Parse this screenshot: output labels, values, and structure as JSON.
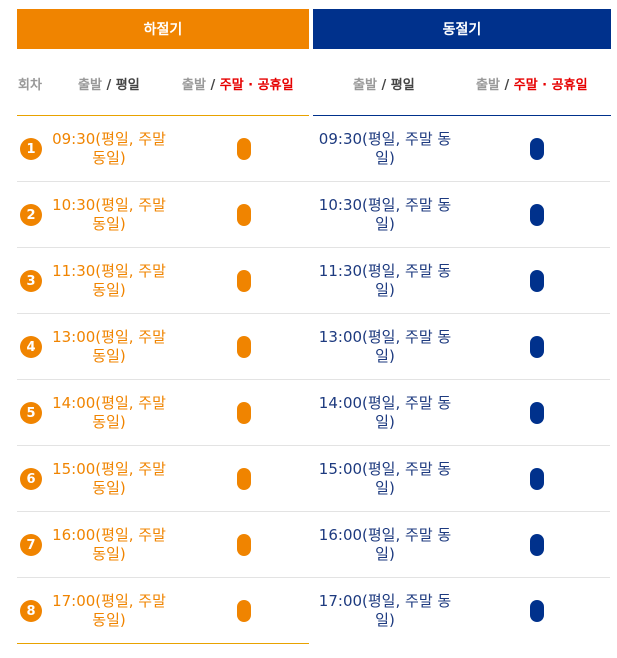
{
  "seasons": {
    "summer": "하절기",
    "winter": "동절기"
  },
  "headers": {
    "round": "회차",
    "depart": "출발",
    "slash": " / ",
    "weekday": "평일",
    "weekend": "주말 · 공휴일"
  },
  "colors": {
    "summer_accent": "#f08400",
    "winter_accent": "#00318c"
  },
  "rows": [
    {
      "num": "1",
      "summer_time": "09:30(평일, 주말 동일)",
      "winter_time": "09:30(평일, 주말 동일)"
    },
    {
      "num": "2",
      "summer_time": "10:30(평일, 주말 동일)",
      "winter_time": "10:30(평일, 주말 동일)"
    },
    {
      "num": "3",
      "summer_time": "11:30(평일, 주말 동일)",
      "winter_time": "11:30(평일, 주말 동일)"
    },
    {
      "num": "4",
      "summer_time": "13:00(평일, 주말 동일)",
      "winter_time": "13:00(평일, 주말 동일)"
    },
    {
      "num": "5",
      "summer_time": "14:00(평일, 주말 동일)",
      "winter_time": "14:00(평일, 주말 동일)"
    },
    {
      "num": "6",
      "summer_time": "15:00(평일, 주말 동일)",
      "winter_time": "15:00(평일, 주말 동일)"
    },
    {
      "num": "7",
      "summer_time": "16:00(평일, 주말 동일)",
      "winter_time": "16:00(평일, 주말 동일)"
    },
    {
      "num": "8",
      "summer_time": "17:00(평일, 주말 동일)",
      "winter_time": "17:00(평일, 주말 동일)"
    }
  ]
}
